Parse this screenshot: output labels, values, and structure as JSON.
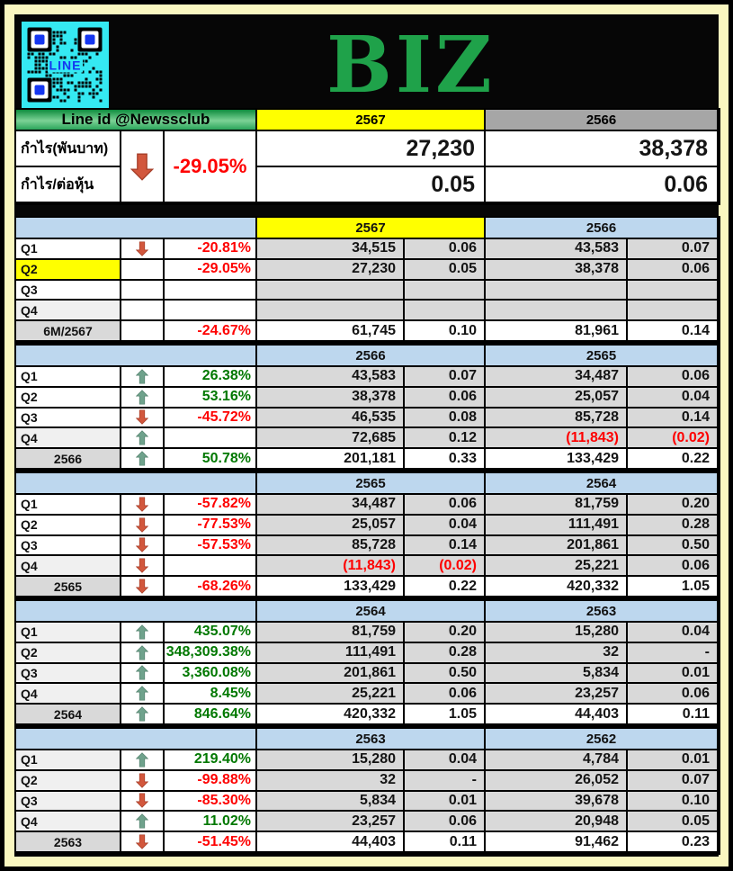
{
  "title": "BIZ",
  "qr": {
    "label": "LINE"
  },
  "summary": {
    "line_id": "Line id @Newssclub",
    "year1": "2567",
    "year2": "2566",
    "arrow": "down",
    "percent": "-29.05%",
    "rows": [
      {
        "label": "กำไร(พันบาท)",
        "y1": "27,230",
        "y2": "38,378"
      },
      {
        "label": "กำไร/ต่อหุ้น",
        "y1": "0.05",
        "y2": "0.06"
      }
    ]
  },
  "blocks": [
    {
      "year1": "2567",
      "year2": "2566",
      "year1_bg": "yellow",
      "rows": [
        {
          "label": "Q1",
          "arrow": "down",
          "pct": "-20.81%",
          "v1": "34,515",
          "e1": "0.06",
          "v2": "43,583",
          "e2": "0.07"
        },
        {
          "label": "Q2",
          "label_bg": "yellow",
          "arrow": "",
          "pct": "-29.05%",
          "v1": "27,230",
          "e1": "0.05",
          "v2": "38,378",
          "e2": "0.06"
        },
        {
          "label": "Q3",
          "arrow": "",
          "pct": "",
          "v1": "",
          "e1": "",
          "v2": "",
          "e2": ""
        },
        {
          "label": "Q4",
          "label_bg": "lightgray",
          "arrow": "",
          "pct": "",
          "v1": "",
          "e1": "",
          "v2": "",
          "e2": ""
        },
        {
          "label": "6M/2567",
          "summary": true,
          "label_bg": "yellow",
          "arrow": "",
          "pct": "-24.67%",
          "v1": "61,745",
          "e1": "0.10",
          "v2": "81,961",
          "e2": "0.14"
        }
      ]
    },
    {
      "year1": "2566",
      "year2": "2565",
      "rows": [
        {
          "label": "Q1",
          "arrow": "up",
          "pct": "26.38%",
          "v1": "43,583",
          "e1": "0.07",
          "v2": "34,487",
          "e2": "0.06"
        },
        {
          "label": "Q2",
          "arrow": "up",
          "pct": "53.16%",
          "v1": "38,378",
          "e1": "0.06",
          "v2": "25,057",
          "e2": "0.04"
        },
        {
          "label": "Q3",
          "arrow": "down",
          "pct": "-45.72%",
          "v1": "46,535",
          "e1": "0.08",
          "v2": "85,728",
          "e2": "0.14"
        },
        {
          "label": "Q4",
          "label_bg": "lightgray",
          "arrow": "up",
          "pct": "",
          "v1": "72,685",
          "e1": "0.12",
          "v2": "(11,843)",
          "e2": "(0.02)"
        },
        {
          "label": "2566",
          "summary": true,
          "arrow": "up",
          "pct": "50.78%",
          "v1": "201,181",
          "e1": "0.33",
          "v2": "133,429",
          "e2": "0.22"
        }
      ]
    },
    {
      "year1": "2565",
      "year2": "2564",
      "rows": [
        {
          "label": "Q1",
          "arrow": "down",
          "pct": "-57.82%",
          "v1": "34,487",
          "e1": "0.06",
          "v2": "81,759",
          "e2": "0.20"
        },
        {
          "label": "Q2",
          "arrow": "down",
          "pct": "-77.53%",
          "v1": "25,057",
          "e1": "0.04",
          "v2": "111,491",
          "e2": "0.28"
        },
        {
          "label": "Q3",
          "arrow": "down",
          "pct": "-57.53%",
          "v1": "85,728",
          "e1": "0.14",
          "v2": "201,861",
          "e2": "0.50"
        },
        {
          "label": "Q4",
          "label_bg": "lightgray",
          "arrow": "down",
          "pct": "",
          "v1": "(11,843)",
          "e1": "(0.02)",
          "v2": "25,221",
          "e2": "0.06"
        },
        {
          "label": "2565",
          "summary": true,
          "arrow": "down",
          "pct": "-68.26%",
          "v1": "133,429",
          "e1": "0.22",
          "v2": "420,332",
          "e2": "1.05"
        }
      ]
    },
    {
      "year1": "2564",
      "year2": "2563",
      "rows": [
        {
          "label": "Q1",
          "label_bg": "lightgray",
          "arrow": "up",
          "pct": "435.07%",
          "v1": "81,759",
          "e1": "0.20",
          "v2": "15,280",
          "e2": "0.04"
        },
        {
          "label": "Q2",
          "label_bg": "lightgray",
          "arrow": "up",
          "pct": "348,309.38%",
          "v1": "111,491",
          "e1": "0.28",
          "v2": "32",
          "e2": "-"
        },
        {
          "label": "Q3",
          "label_bg": "lightgray",
          "arrow": "up",
          "pct": "3,360.08%",
          "v1": "201,861",
          "e1": "0.50",
          "v2": "5,834",
          "e2": "0.01"
        },
        {
          "label": "Q4",
          "label_bg": "lightgray",
          "arrow": "up",
          "pct": "8.45%",
          "v1": "25,221",
          "e1": "0.06",
          "v2": "23,257",
          "e2": "0.06"
        },
        {
          "label": "2564",
          "summary": true,
          "arrow": "up",
          "pct": "846.64%",
          "v1": "420,332",
          "e1": "1.05",
          "v2": "44,403",
          "e2": "0.11"
        }
      ]
    },
    {
      "year1": "2563",
      "year2": "2562",
      "rows": [
        {
          "label": "Q1",
          "label_bg": "lightgray",
          "arrow": "up",
          "pct": "219.40%",
          "v1": "15,280",
          "e1": "0.04",
          "v2": "4,784",
          "e2": "0.01"
        },
        {
          "label": "Q2",
          "label_bg": "lightgray",
          "arrow": "down",
          "pct": "-99.88%",
          "v1": "32",
          "e1": "-",
          "v2": "26,052",
          "e2": "0.07"
        },
        {
          "label": "Q3",
          "label_bg": "lightgray",
          "arrow": "down",
          "pct": "-85.30%",
          "v1": "5,834",
          "e1": "0.01",
          "v2": "39,678",
          "e2": "0.10"
        },
        {
          "label": "Q4",
          "label_bg": "lightgray",
          "arrow": "up",
          "pct": "11.02%",
          "v1": "23,257",
          "e1": "0.06",
          "v2": "20,948",
          "e2": "0.05"
        },
        {
          "label": "2563",
          "summary": true,
          "arrow": "down",
          "pct": "-51.45%",
          "v1": "44,403",
          "e1": "0.11",
          "v2": "91,462",
          "e2": "0.23"
        }
      ]
    }
  ],
  "colors": {
    "title_green": "#1FA24A",
    "frame_yellow": "#FAF7C0",
    "year_highlight": "#FFFF00",
    "block_header_blue": "#BDD7EE",
    "value_cell_gray": "#D9D9D9",
    "summary_header_gray": "#A6A6A6",
    "positive_text": "#007800",
    "negative_text": "#FE0000",
    "arrow_up": "#6FA28C",
    "arrow_up_edge": "#55836F",
    "arrow_down": "#D2573D",
    "arrow_down_edge": "#A53E28",
    "qr_cyan": "#35E9F2",
    "line_text_blue": "#1536F0"
  }
}
